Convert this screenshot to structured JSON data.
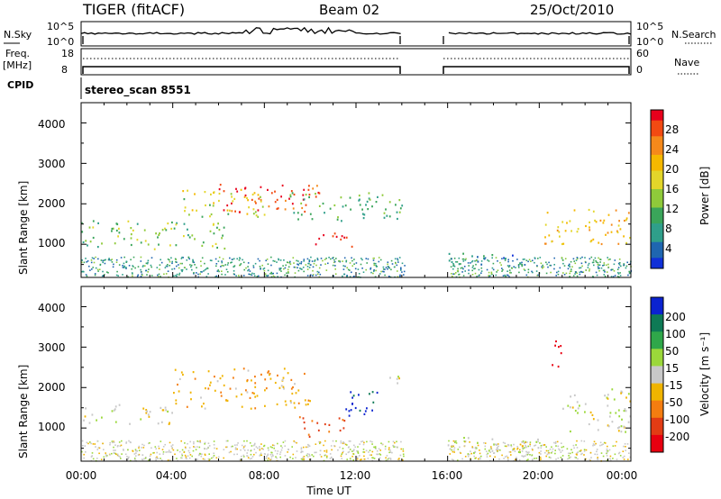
{
  "header": {
    "title": "TIGER (fitACF)",
    "beam": "Beam 02",
    "date": "25/Oct/2010"
  },
  "status_panels": {
    "nsky_label": "N.Sky",
    "nsky_ticks": [
      "10^5",
      "10^0"
    ],
    "nsearch_label": "N.Search",
    "nsearch_ticks": [
      "10^5",
      "10^0"
    ],
    "freq_label_1": "Freq.",
    "freq_label_2": "[MHz]",
    "freq_ticks": [
      "18",
      "8"
    ],
    "nave_label": "Nave",
    "nave_ticks": [
      "60",
      "0"
    ],
    "cpid_label": "CPID",
    "cpid_value": "stereo_scan 8551"
  },
  "axes": {
    "ylabel": "Slant Range [km]",
    "yticks": [
      "4000",
      "3000",
      "2000",
      "1000"
    ],
    "xticks": [
      "00:00",
      "04:00",
      "08:00",
      "12:00",
      "16:00",
      "20:00",
      "00:00"
    ],
    "xlabel": "Time UT"
  },
  "colorbars": {
    "power_label": "Power [dB]",
    "power_ticks": [
      "28",
      "24",
      "20",
      "16",
      "12",
      "8",
      "4"
    ],
    "power_colors": [
      "#e8001c",
      "#f24a12",
      "#f5891b",
      "#f5b800",
      "#e3d62a",
      "#8fca3a",
      "#3aa55a",
      "#2f9f8a",
      "#1f66b0",
      "#1030d8"
    ],
    "velocity_label": "Velocity [m s⁻¹]",
    "velocity_ticks": [
      "200",
      "100",
      "50",
      "15",
      "-15",
      "-50",
      "-100",
      "-200"
    ],
    "velocity_colors": [
      "#0b23d0",
      "#0e7a55",
      "#2fa74a",
      "#9bd83a",
      "#c8c8c8",
      "#f0b400",
      "#f47d10",
      "#e23c14",
      "#e80010"
    ]
  },
  "chart_data": [
    {
      "type": "heatmap",
      "title": "Power",
      "xlabel": "Time UT",
      "ylabel": "Slant Range [km]",
      "x_range_hours": [
        0,
        24
      ],
      "y_range_km": [
        180,
        4500
      ],
      "color_scale_db": [
        0,
        30
      ],
      "data_gap_hours": [
        14.1,
        16.0
      ],
      "echo_regions": [
        {
          "t_start": 0.0,
          "t_end": 6.5,
          "range_start": 900,
          "range_end": 1600,
          "power_db": 12
        },
        {
          "t_start": 4.0,
          "t_end": 8.0,
          "range_start": 1700,
          "range_end": 2400,
          "power_db": 16
        },
        {
          "t_start": 6.0,
          "t_end": 10.5,
          "range_start": 1800,
          "range_end": 2500,
          "power_db": 28
        },
        {
          "t_start": 10.0,
          "t_end": 11.8,
          "range_start": 950,
          "range_end": 1300,
          "power_db": 29
        },
        {
          "t_start": 9.0,
          "t_end": 14.0,
          "range_start": 1600,
          "range_end": 2300,
          "power_db": 10
        },
        {
          "t_start": 16.0,
          "t_end": 19.5,
          "range_start": 500,
          "range_end": 800,
          "power_db": 6
        },
        {
          "t_start": 20.2,
          "t_end": 24.0,
          "range_start": 1000,
          "range_end": 1900,
          "power_db": 20
        }
      ]
    },
    {
      "type": "heatmap",
      "title": "Velocity",
      "xlabel": "Time UT",
      "ylabel": "Slant Range [km]",
      "x_range_hours": [
        0,
        24
      ],
      "y_range_km": [
        180,
        4500
      ],
      "color_scale_ms": [
        -250,
        250
      ],
      "data_gap_hours": [
        14.1,
        16.0
      ],
      "echo_regions": [
        {
          "t_start": 0.0,
          "t_end": 4.0,
          "range_start": 1100,
          "range_end": 1600,
          "velocity": 0
        },
        {
          "t_start": 4.0,
          "t_end": 10.0,
          "range_start": 1500,
          "range_end": 2500,
          "velocity": -40
        },
        {
          "t_start": 9.5,
          "t_end": 11.5,
          "range_start": 800,
          "range_end": 1300,
          "velocity": -120
        },
        {
          "t_start": 11.5,
          "t_end": 13.0,
          "range_start": 1300,
          "range_end": 2100,
          "velocity": 220
        },
        {
          "t_start": 12.5,
          "t_end": 14.0,
          "range_start": 2100,
          "range_end": 2300,
          "velocity": 0
        },
        {
          "t_start": 16.0,
          "t_end": 20.0,
          "range_start": 400,
          "range_end": 800,
          "velocity": 10
        },
        {
          "t_start": 20.5,
          "t_end": 21.0,
          "range_start": 2400,
          "range_end": 3200,
          "velocity": -220
        },
        {
          "t_start": 21.0,
          "t_end": 24.0,
          "range_start": 900,
          "range_end": 2000,
          "velocity": 0
        }
      ]
    }
  ]
}
